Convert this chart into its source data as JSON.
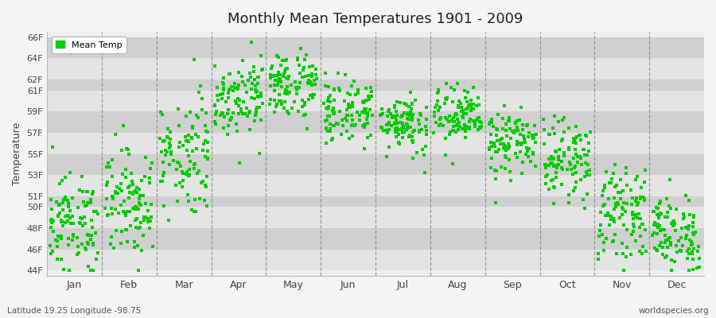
{
  "title": "Monthly Mean Temperatures 1901 - 2009",
  "ylabel": "Temperature",
  "subtitle": "Latitude 19.25 Longitude -98.75",
  "watermark": "worldspecies.org",
  "legend_label": "Mean Temp",
  "dot_color": "#00cc00",
  "ytick_labels": [
    "44F",
    "46F",
    "48F",
    "50F",
    "51F",
    "53F",
    "55F",
    "57F",
    "59F",
    "61F",
    "62F",
    "64F",
    "66F"
  ],
  "ytick_values": [
    44,
    46,
    48,
    50,
    51,
    53,
    55,
    57,
    59,
    61,
    62,
    64,
    66
  ],
  "months": [
    "Jan",
    "Feb",
    "Mar",
    "Apr",
    "May",
    "Jun",
    "Jul",
    "Aug",
    "Sep",
    "Oct",
    "Nov",
    "Dec"
  ],
  "ylim": [
    43.5,
    66.5
  ],
  "xlim": [
    0.5,
    12.5
  ],
  "month_means": [
    48.5,
    50.5,
    55.0,
    60.5,
    61.5,
    59.0,
    58.0,
    58.5,
    56.0,
    54.5,
    49.5,
    47.5
  ],
  "month_stds": [
    2.2,
    2.5,
    2.8,
    1.8,
    1.6,
    1.5,
    1.4,
    1.4,
    1.5,
    1.8,
    2.0,
    1.8
  ],
  "num_years": 109,
  "band_color_even": "#e4e4e4",
  "band_color_odd": "#d0d0d0",
  "background_color": "#eeeeee"
}
